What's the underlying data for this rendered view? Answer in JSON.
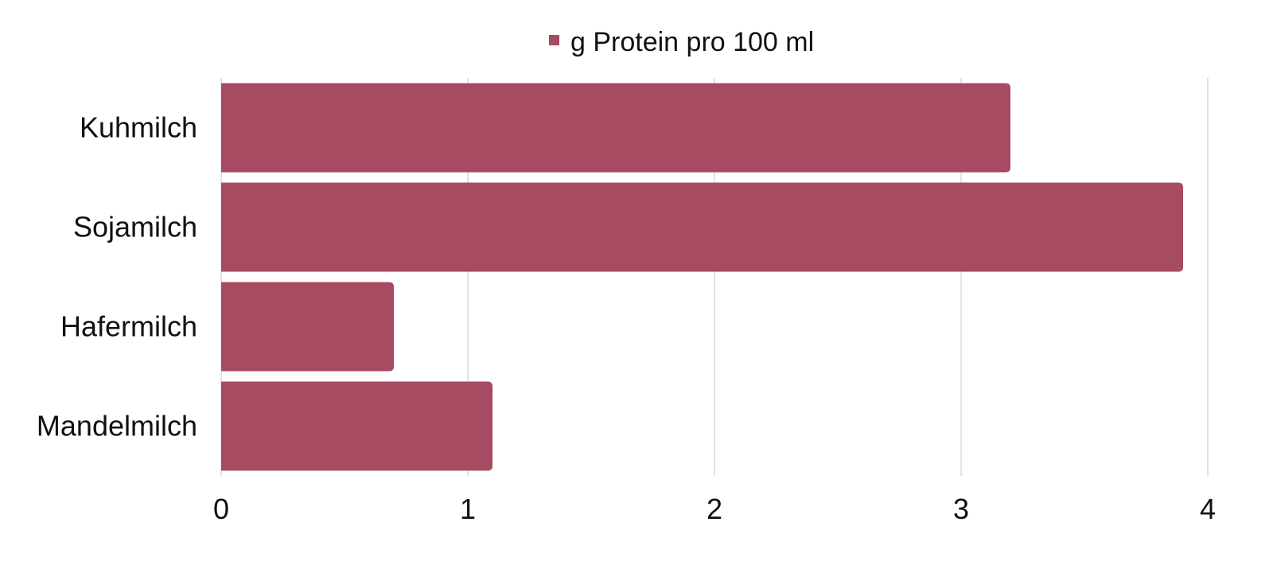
{
  "chart_data": {
    "type": "bar",
    "orientation": "horizontal",
    "categories": [
      "Kuhmilch",
      "Sojamilch",
      "Hafermilch",
      "Mandelmilch"
    ],
    "series": [
      {
        "name": "g Protein pro 100 ml",
        "values": [
          3.2,
          3.9,
          0.7,
          1.1
        ],
        "color": "#a64b62"
      }
    ],
    "x_ticks": [
      "0",
      "1",
      "2",
      "3",
      "4"
    ],
    "xlim": [
      0,
      4
    ],
    "title": "",
    "xlabel": "",
    "ylabel": "",
    "grid": "vertical",
    "grid_color": "#d9d9d9",
    "legend_position": "top"
  }
}
